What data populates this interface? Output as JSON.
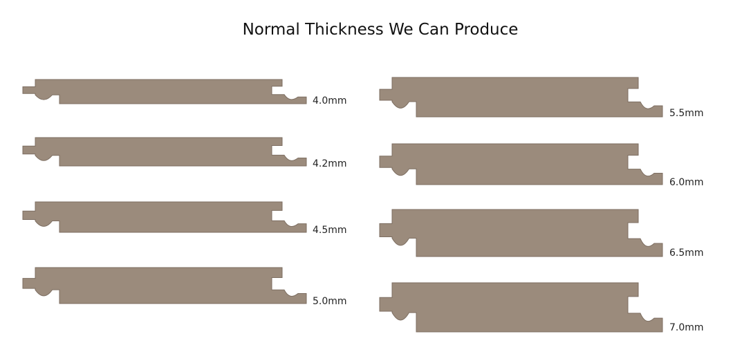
{
  "title": "Normal Thickness We Can Produce",
  "colors": {
    "board": "#9b8b7c",
    "edge": "#7d6e61"
  },
  "boards": [
    {
      "label": "4.0mm",
      "thickness_mm": 4.0
    },
    {
      "label": "4.2mm",
      "thickness_mm": 4.2
    },
    {
      "label": "4.5mm",
      "thickness_mm": 4.5
    },
    {
      "label": "5.0mm",
      "thickness_mm": 5.0
    },
    {
      "label": "5.5mm",
      "thickness_mm": 5.5
    },
    {
      "label": "6.0mm",
      "thickness_mm": 6.0
    },
    {
      "label": "6.5mm",
      "thickness_mm": 6.5
    },
    {
      "label": "7.0mm",
      "thickness_mm": 7.0
    }
  ]
}
